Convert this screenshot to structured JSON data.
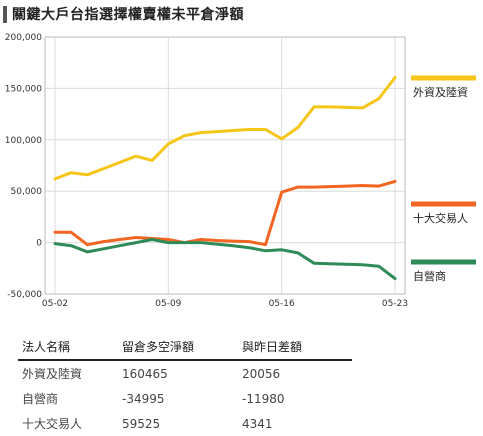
{
  "title": "關鍵大戶台指選擇權賣權未平倉淨額",
  "chart_data": {
    "type": "line",
    "x": [
      "05-02",
      "05-03",
      "05-04",
      "05-05",
      "05-06",
      "05-07",
      "05-08",
      "05-09",
      "05-10",
      "05-11",
      "05-12",
      "05-13",
      "05-14",
      "05-15",
      "05-16",
      "05-17",
      "05-18",
      "05-19",
      "05-20",
      "05-21",
      "05-22",
      "05-23"
    ],
    "xticks": [
      "05-02",
      "05-09",
      "05-16",
      "05-23"
    ],
    "ylim": [
      -50000,
      200000
    ],
    "yticks": [
      "200,000",
      "150,000",
      "100,000",
      "50,000",
      "0",
      "-50,000"
    ],
    "ytick_values": [
      200000,
      150000,
      100000,
      50000,
      0,
      -50000
    ],
    "grid": true,
    "legend_position": "right",
    "series": [
      {
        "name": "外資及陸資",
        "color": "#F5C518",
        "values": [
          62000,
          68000,
          66000,
          72000,
          78000,
          84000,
          80000,
          96000,
          104000,
          107000,
          108000,
          109000,
          110000,
          110000,
          101000,
          112000,
          132000,
          132000,
          131500,
          131000,
          140000,
          160465
        ]
      },
      {
        "name": "十大交易人",
        "color": "#F26522",
        "values": [
          10000,
          10000,
          -2000,
          1000,
          3000,
          5000,
          4000,
          3000,
          0,
          3000,
          2000,
          1500,
          1000,
          -2000,
          49000,
          54000,
          54000,
          54500,
          55000,
          55500,
          55000,
          59525
        ]
      },
      {
        "name": "自營商",
        "color": "#2E8B57",
        "values": [
          -1000,
          -3000,
          -9000,
          -6000,
          -3000,
          0,
          3000,
          0,
          0,
          0,
          -1500,
          -3000,
          -5000,
          -8000,
          -7000,
          -10000,
          -20000,
          -20500,
          -21000,
          -21500,
          -23000,
          -34995
        ]
      }
    ]
  },
  "table": {
    "headers": [
      "法人名稱",
      "留倉多空淨額",
      "與昨日差額"
    ],
    "rows": [
      [
        "外資及陸資",
        "160465",
        "20056"
      ],
      [
        "自營商",
        "-34995",
        "-11980"
      ],
      [
        "十大交易人",
        "59525",
        "4341"
      ]
    ]
  }
}
